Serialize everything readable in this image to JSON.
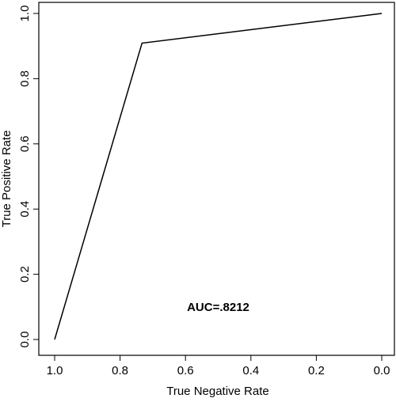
{
  "chart_data": {
    "type": "line",
    "xlabel": "True Negative Rate",
    "ylabel": "True Positive Rate",
    "x_reversed": true,
    "xlim": [
      1.0,
      0.0
    ],
    "ylim": [
      0.0,
      1.0
    ],
    "x_ticks": [
      "1.0",
      "0.8",
      "0.6",
      "0.4",
      "0.2",
      "0.0"
    ],
    "x_tick_values": [
      1.0,
      0.8,
      0.6,
      0.4,
      0.2,
      0.0
    ],
    "y_ticks": [
      "0.0",
      "0.2",
      "0.4",
      "0.6",
      "0.8",
      "1.0"
    ],
    "y_tick_values": [
      0.0,
      0.2,
      0.4,
      0.6,
      0.8,
      1.0
    ],
    "grid": false,
    "series": [
      {
        "x": [
          1.0,
          0.733,
          0.0
        ],
        "y": [
          0.0,
          0.909,
          1.0
        ],
        "color": "#000000"
      }
    ],
    "annotation": {
      "text": "AUC=.8212",
      "x": 0.5,
      "y": 0.1
    }
  }
}
